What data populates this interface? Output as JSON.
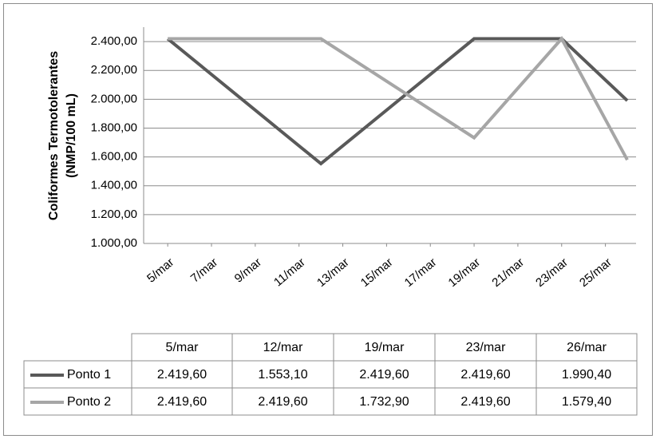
{
  "chart_data": {
    "type": "line",
    "y_label": [
      "Coliformes Termotolerantes",
      "(NMP/100 mL)"
    ],
    "x": [
      5,
      12,
      19,
      23,
      26
    ],
    "xlim": [
      3.9,
      26.4
    ],
    "xticks": [
      {
        "value": 5,
        "label": "5/mar"
      },
      {
        "value": 7,
        "label": "7/mar"
      },
      {
        "value": 9,
        "label": "9/mar"
      },
      {
        "value": 11,
        "label": "11/mar"
      },
      {
        "value": 13,
        "label": "13/mar"
      },
      {
        "value": 15,
        "label": "15/mar"
      },
      {
        "value": 17,
        "label": "17/mar"
      },
      {
        "value": 19,
        "label": "19/mar"
      },
      {
        "value": 21,
        "label": "21/mar"
      },
      {
        "value": 23,
        "label": "23/mar"
      },
      {
        "value": 25,
        "label": "25/mar"
      }
    ],
    "ylim": [
      1000,
      2500
    ],
    "yticks": [
      {
        "value": 1000,
        "label": "1.000,00"
      },
      {
        "value": 1200,
        "label": "1.200,00"
      },
      {
        "value": 1400,
        "label": "1.400,00"
      },
      {
        "value": 1600,
        "label": "1.600,00"
      },
      {
        "value": 1800,
        "label": "1.800,00"
      },
      {
        "value": 2000,
        "label": "2.000,00"
      },
      {
        "value": 2200,
        "label": "2.200,00"
      },
      {
        "value": 2400,
        "label": "2.400,00"
      }
    ],
    "grid": true,
    "series": [
      {
        "name": "Ponto 1",
        "color": "#595959",
        "values": [
          2419.6,
          1553.1,
          2419.6,
          2419.6,
          1990.4
        ],
        "value_labels": [
          "2.419,60",
          "1.553,10",
          "2.419,60",
          "2.419,60",
          "1.990,40"
        ]
      },
      {
        "name": "Ponto 2",
        "color": "#a6a6a6",
        "values": [
          2419.6,
          2419.6,
          1732.9,
          2419.6,
          1579.4
        ],
        "value_labels": [
          "2.419,60",
          "2.419,60",
          "1.732,90",
          "2.419,60",
          "1.579,40"
        ]
      }
    ],
    "table": {
      "columns": [
        "5/mar",
        "12/mar",
        "19/mar",
        "23/mar",
        "26/mar"
      ]
    }
  }
}
